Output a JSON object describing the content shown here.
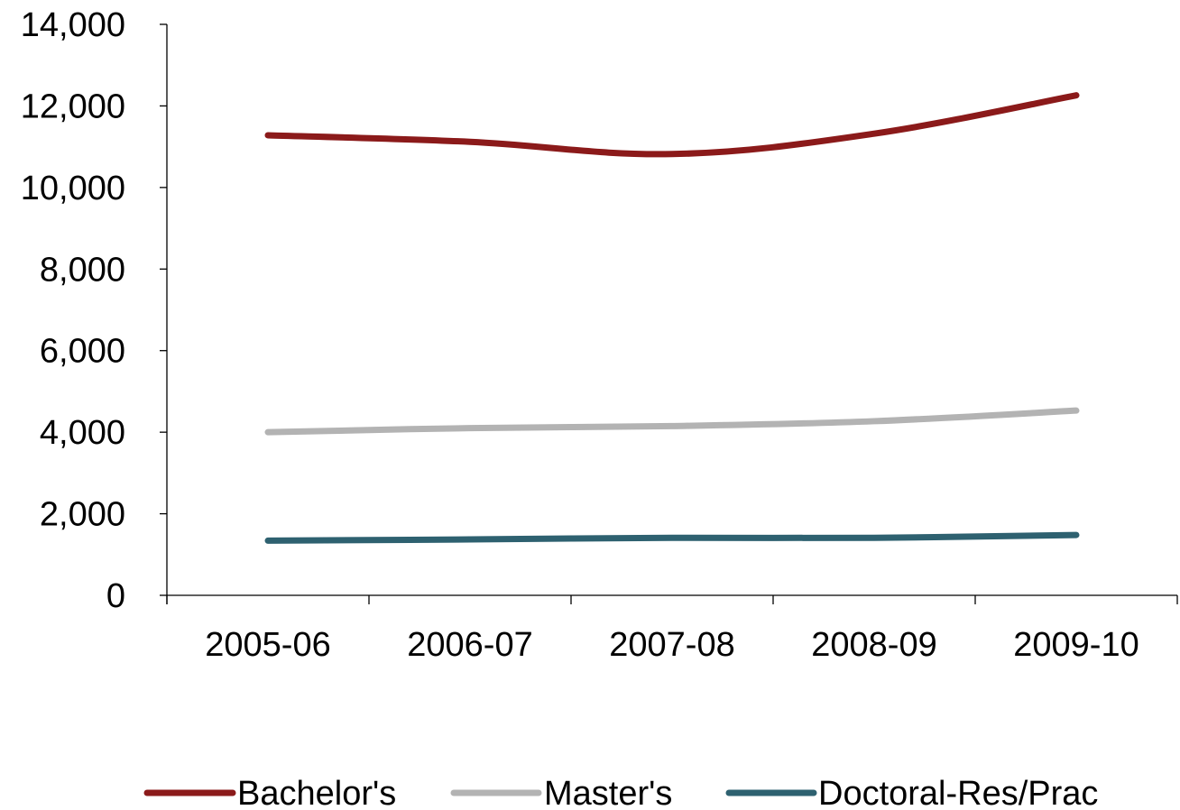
{
  "chart_data": {
    "type": "line",
    "title": "",
    "xlabel": "",
    "ylabel": "",
    "categories": [
      "2005-06",
      "2006-07",
      "2007-08",
      "2008-09",
      "2009-10"
    ],
    "ylim": [
      0,
      14000
    ],
    "yticks": [
      0,
      2000,
      4000,
      6000,
      8000,
      10000,
      12000,
      14000
    ],
    "ytick_labels": [
      "0",
      "2,000",
      "4,000",
      "6,000",
      "8,000",
      "10,000",
      "12,000",
      "14,000"
    ],
    "grid": false,
    "legend_position": "bottom",
    "series": [
      {
        "name": "Bachelor's",
        "color": "#8b1a1a",
        "values": [
          11280,
          11120,
          10820,
          11320,
          12260
        ]
      },
      {
        "name": "Master's",
        "color": "#b3b3b3",
        "values": [
          4000,
          4100,
          4150,
          4270,
          4530
        ]
      },
      {
        "name": "Doctoral-Res/Prac",
        "color": "#2e6170",
        "values": [
          1340,
          1370,
          1410,
          1410,
          1480
        ]
      }
    ]
  }
}
